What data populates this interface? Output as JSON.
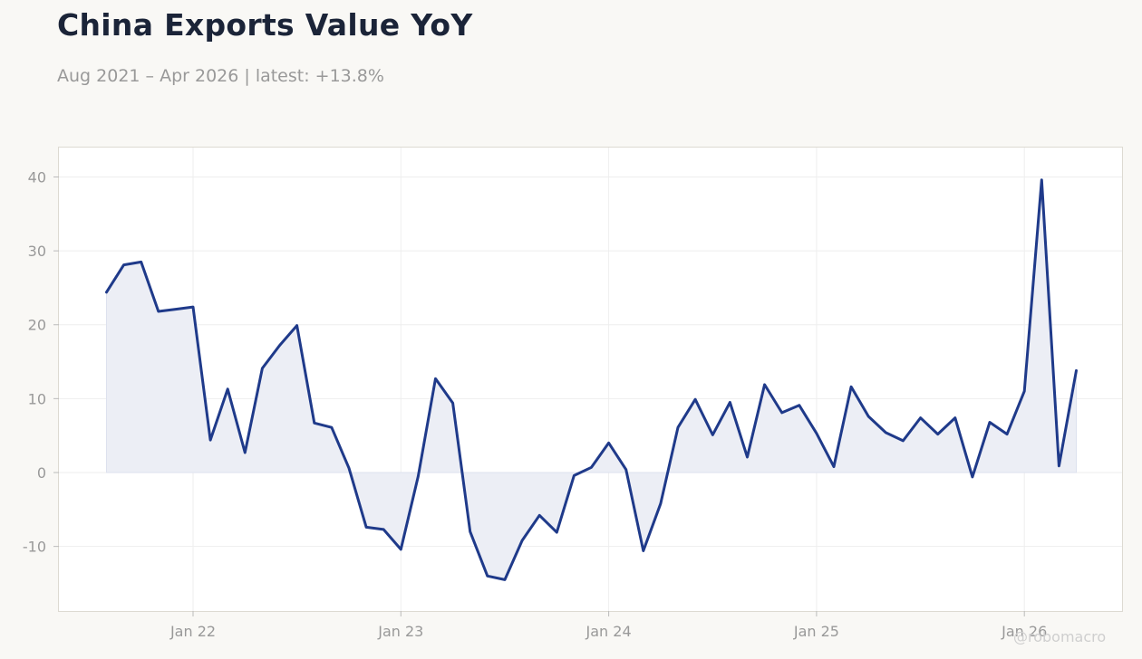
{
  "header": {
    "title": "China Exports Value YoY",
    "subtitle": "Aug 2021 – Apr 2026 | latest: +13.8%"
  },
  "watermark": "@robomacro",
  "colors": {
    "line": "#1f3a8a",
    "fill": "#eceef5",
    "background": "#f9f8f5",
    "plot_background": "#ffffff",
    "grid": "#eeeeee"
  },
  "chart_data": {
    "type": "area",
    "title": "China Exports Value YoY",
    "xlabel": "",
    "ylabel": "",
    "ylim": [
      -19,
      44
    ],
    "yticks": [
      -10,
      0,
      10,
      20,
      30,
      40
    ],
    "xtick_labels": [
      "Jan 22",
      "Jan 23",
      "Jan 24",
      "Jan 25",
      "Jan 26"
    ],
    "grid": true,
    "x": [
      "2021-08",
      "2021-09",
      "2021-10",
      "2021-11",
      "2021-12",
      "2022-01",
      "2022-02",
      "2022-03",
      "2022-04",
      "2022-05",
      "2022-06",
      "2022-07",
      "2022-08",
      "2022-09",
      "2022-10",
      "2022-11",
      "2022-12",
      "2023-01",
      "2023-02",
      "2023-03",
      "2023-04",
      "2023-05",
      "2023-06",
      "2023-07",
      "2023-08",
      "2023-09",
      "2023-10",
      "2023-11",
      "2023-12",
      "2024-01",
      "2024-02",
      "2024-03",
      "2024-04",
      "2024-05",
      "2024-06",
      "2024-07",
      "2024-08",
      "2024-09",
      "2024-10",
      "2024-11",
      "2024-12",
      "2025-01",
      "2025-02",
      "2025-03",
      "2025-04",
      "2025-05",
      "2025-06",
      "2025-07",
      "2025-08",
      "2025-09",
      "2025-10",
      "2025-11",
      "2025-12",
      "2026-01",
      "2026-02",
      "2026-03",
      "2026-04"
    ],
    "series": [
      {
        "values": [
          24.4,
          28.1,
          28.5,
          21.8,
          22.1,
          22.4,
          4.4,
          11.3,
          2.7,
          14.1,
          17.2,
          19.9,
          6.7,
          6.1,
          0.6,
          -7.4,
          -7.7,
          -10.4,
          -0.5,
          12.7,
          9.4,
          -8.0,
          -14.0,
          -14.5,
          -9.2,
          -5.8,
          -8.1,
          -0.4,
          0.7,
          4.0,
          0.4,
          -10.6,
          -4.2,
          6.1,
          9.9,
          5.1,
          9.5,
          2.1,
          11.9,
          8.1,
          9.1,
          5.3,
          0.8,
          11.6,
          7.6,
          5.4,
          4.3,
          7.4,
          5.2,
          7.4,
          -0.6,
          6.8,
          5.2,
          11.0,
          39.6,
          0.9,
          13.8
        ]
      }
    ]
  }
}
